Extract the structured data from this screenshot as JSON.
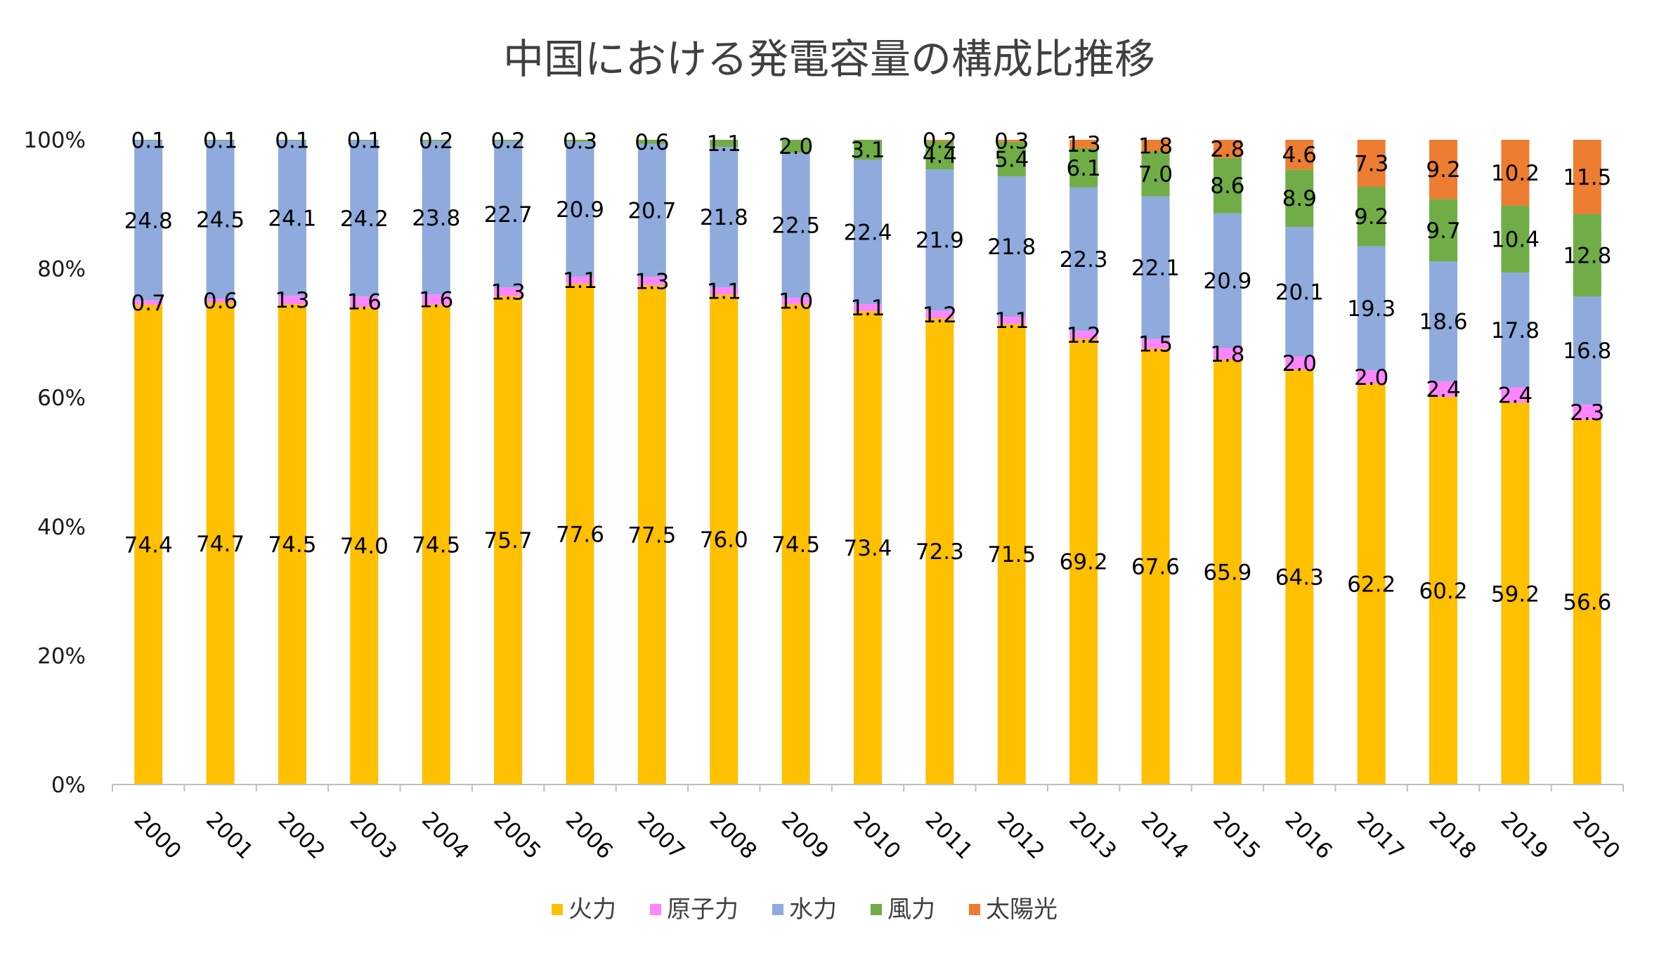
{
  "chart_data": {
    "type": "bar",
    "stacked": "percent",
    "title": "中国における発電容量の構成比推移",
    "xlabel": "",
    "ylabel": "",
    "ylim": [
      0,
      100
    ],
    "y_ticks": [
      "0%",
      "20%",
      "40%",
      "60%",
      "80%",
      "100%"
    ],
    "grid": false,
    "legend_position": "bottom",
    "categories": [
      "2000",
      "2001",
      "2002",
      "2003",
      "2004",
      "2005",
      "2006",
      "2007",
      "2008",
      "2009",
      "2010",
      "2011",
      "2012",
      "2013",
      "2014",
      "2015",
      "2016",
      "2017",
      "2018",
      "2019",
      "2020"
    ],
    "series": [
      {
        "name": "火力",
        "color": "#FFC000",
        "values": [
          74.4,
          74.7,
          74.5,
          74.0,
          74.5,
          75.7,
          77.6,
          77.5,
          76.0,
          74.5,
          73.4,
          72.3,
          71.5,
          69.2,
          67.6,
          65.9,
          64.3,
          62.2,
          60.2,
          59.2,
          56.6
        ]
      },
      {
        "name": "原子力",
        "color": "#FF85FF",
        "values": [
          0.7,
          0.6,
          1.3,
          1.6,
          1.6,
          1.3,
          1.1,
          1.3,
          1.1,
          1.0,
          1.1,
          1.2,
          1.1,
          1.2,
          1.5,
          1.8,
          2.0,
          2.0,
          2.4,
          2.4,
          2.3
        ]
      },
      {
        "name": "水力",
        "color": "#8FAADC",
        "values": [
          24.8,
          24.5,
          24.1,
          24.2,
          23.8,
          22.7,
          20.9,
          20.7,
          21.8,
          22.5,
          22.4,
          21.9,
          21.8,
          22.3,
          22.1,
          20.9,
          20.1,
          19.3,
          18.6,
          17.8,
          16.8
        ]
      },
      {
        "name": "風力",
        "color": "#70AD47",
        "values": [
          0.1,
          0.1,
          0.1,
          0.1,
          0.2,
          0.2,
          0.3,
          0.6,
          1.1,
          2.0,
          3.1,
          4.4,
          5.4,
          6.1,
          7.0,
          8.6,
          8.9,
          9.2,
          9.7,
          10.4,
          12.8
        ]
      },
      {
        "name": "太陽光",
        "color": "#ED7D31",
        "values": [
          null,
          null,
          null,
          null,
          null,
          null,
          null,
          null,
          null,
          null,
          null,
          0.2,
          0.3,
          1.3,
          1.8,
          2.8,
          4.6,
          7.3,
          9.2,
          10.2,
          11.5
        ]
      }
    ],
    "data_labels": [
      [
        "74.4",
        "74.7",
        "74.5",
        "74.0",
        "74.5",
        "75.7",
        "77.6",
        "77.5",
        "76.0",
        "74.5",
        "73.4",
        "72.3",
        "71.5",
        "69.2",
        "67.6",
        "65.9",
        "64.3",
        "62.2",
        "60.2",
        "59.2",
        "56.6"
      ],
      [
        "0.7",
        "0.6",
        "1.3",
        "1.6",
        "1.6",
        "1.3",
        "1.1",
        "1.3",
        "1.1",
        "1.0",
        "1.1",
        "1.2",
        "1.1",
        "1.2",
        "1.5",
        "1.8",
        "2.0",
        "2.0",
        "2.4",
        "2.4",
        "2.3"
      ],
      [
        "24.8",
        "24.5",
        "24.1",
        "24.2",
        "23.8",
        "22.7",
        "20.9",
        "20.7",
        "21.8",
        "22.5",
        "22.4",
        "21.9",
        "21.8",
        "22.3",
        "22.1",
        "20.9",
        "20.1",
        "19.3",
        "18.6",
        "17.8",
        "16.8"
      ],
      [
        "0.1",
        "0.1",
        "0.1",
        "0.1",
        "0.2",
        "0.2",
        "0.3",
        "0.6",
        "1.1",
        "2.0",
        "3.1",
        "4.4",
        "5.4",
        "6.1",
        "7.0",
        "8.6",
        "8.9",
        "9.2",
        "9.7",
        "10.4",
        "12.8"
      ],
      [
        null,
        null,
        null,
        null,
        null,
        null,
        null,
        null,
        null,
        null,
        null,
        "0.2",
        "0.3",
        "1.3",
        "1.8",
        "2.8",
        "4.6",
        "7.3",
        "9.2",
        "10.2",
        "11.5"
      ]
    ]
  }
}
